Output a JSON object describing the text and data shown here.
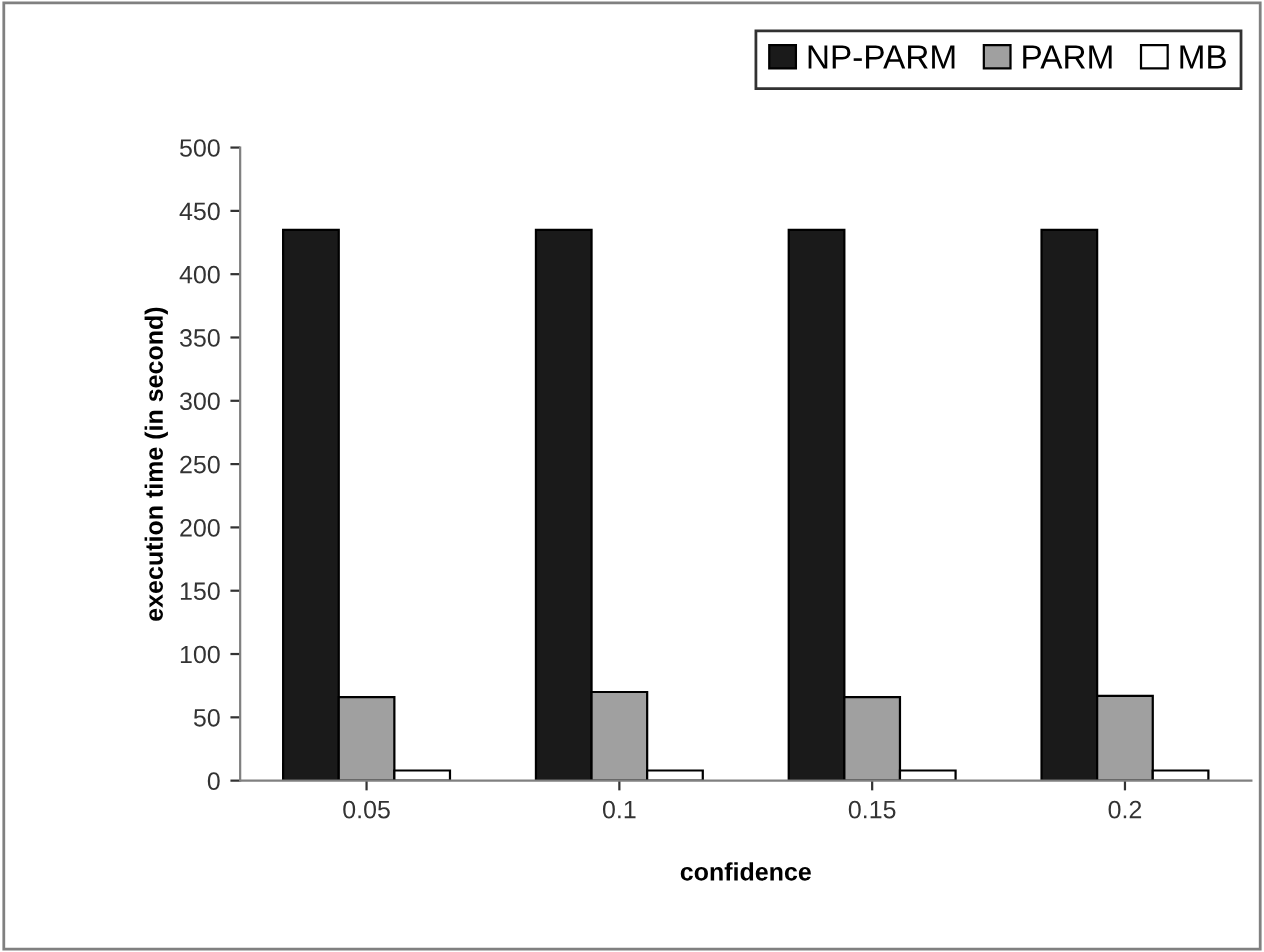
{
  "chart_data": {
    "type": "bar",
    "xlabel": "confidence",
    "ylabel": "execution time (in second)",
    "categories": [
      "0.05",
      "0.1",
      "0.15",
      "0.2"
    ],
    "series": [
      {
        "name": "NP-PARM",
        "color": "#1a1a1a",
        "values": [
          435,
          435,
          435,
          435
        ]
      },
      {
        "name": "PARM",
        "color": "#a0a0a0",
        "values": [
          66,
          70,
          66,
          67
        ]
      },
      {
        "name": "MB",
        "color": "#ffffff",
        "values": [
          8,
          8,
          8,
          8
        ]
      }
    ],
    "ylim": [
      0,
      500
    ],
    "yticks": [
      0,
      50,
      100,
      150,
      200,
      250,
      300,
      350,
      400,
      450,
      500
    ],
    "grid": false,
    "legend": "top right"
  }
}
